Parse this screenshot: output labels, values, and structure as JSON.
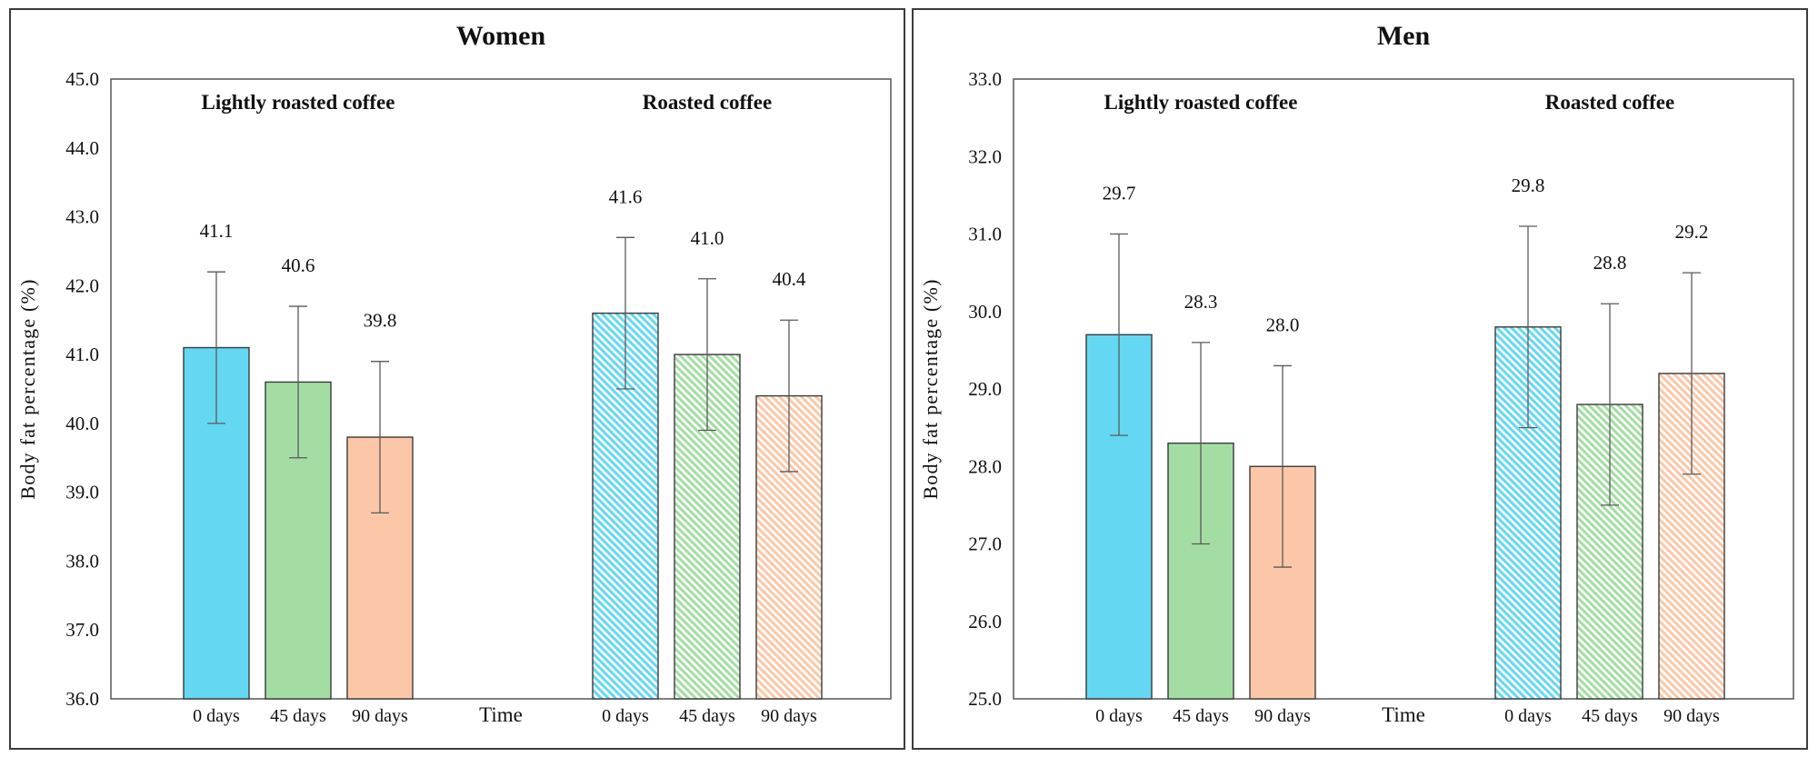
{
  "style": {
    "background": "#ffffff",
    "panel_border_color": "#3c3c3c",
    "plot_border_color": "#4a4a4a",
    "bar_border_color": "#3a3a3a",
    "error_bar_color": "#5a5a5a",
    "text_color": "#111111"
  },
  "chart_data": [
    {
      "type": "bar",
      "title": "Women",
      "ylabel": "Body fat percentage (%)",
      "xlabel": "Time",
      "ylim": [
        36.0,
        45.0
      ],
      "ytick_step": 1.0,
      "ytick_decimals": 1,
      "grid": false,
      "legend": "none",
      "categories": [
        "0 days",
        "45 days",
        "90 days"
      ],
      "group_labels": [
        "Lightly roasted coffee",
        "Roasted coffee"
      ],
      "bar_colors": [
        "#64d8f2",
        "#a4dda4",
        "#fbc7a8"
      ],
      "data_labels": true,
      "series": [
        {
          "name": "Lightly roasted coffee",
          "pattern": "solid",
          "values": [
            41.1,
            40.6,
            39.8
          ],
          "errors": [
            1.1,
            1.1,
            1.1
          ]
        },
        {
          "name": "Roasted coffee",
          "pattern": "diagonal-hatch",
          "values": [
            41.6,
            41.0,
            40.4
          ],
          "errors": [
            1.1,
            1.1,
            1.1
          ]
        }
      ]
    },
    {
      "type": "bar",
      "title": "Men",
      "ylabel": "Body fat percentage (%)",
      "xlabel": "Time",
      "ylim": [
        25.0,
        33.0
      ],
      "ytick_step": 1.0,
      "ytick_decimals": 1,
      "grid": false,
      "legend": "none",
      "categories": [
        "0 days",
        "45 days",
        "90 days"
      ],
      "group_labels": [
        "Lightly roasted coffee",
        "Roasted coffee"
      ],
      "bar_colors": [
        "#64d8f2",
        "#a4dda4",
        "#fbc7a8"
      ],
      "data_labels": true,
      "series": [
        {
          "name": "Lightly roasted coffee",
          "pattern": "solid",
          "values": [
            29.7,
            28.3,
            28.0
          ],
          "errors": [
            1.3,
            1.3,
            1.3
          ]
        },
        {
          "name": "Roasted coffee",
          "pattern": "diagonal-hatch",
          "values": [
            29.8,
            28.8,
            29.2
          ],
          "errors": [
            1.3,
            1.3,
            1.3
          ]
        }
      ]
    }
  ]
}
